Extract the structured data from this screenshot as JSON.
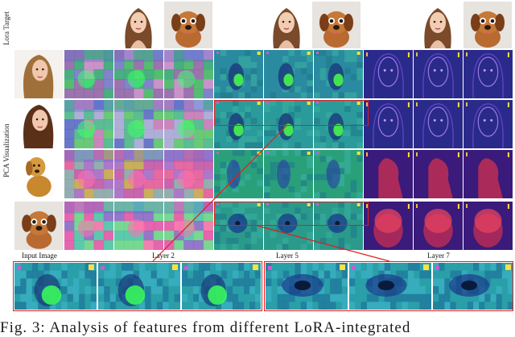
{
  "labels": {
    "lora_target": "Lora Target",
    "pca_visualization": "PCA Visualization",
    "input_image": "Input Image",
    "layer2": "Layer 2",
    "layer5": "Layer 5",
    "layer7": "Layer 7"
  },
  "caption": "Fig. 3: Analysis of features from different LoRA-integrated",
  "colors": {
    "highlight_red": "#e21d1d",
    "layer2_base": "#6a8a6a",
    "layer5_base": "#1f9c6a",
    "layer7_base": "#3a2a9a"
  },
  "input_images": [
    "woman-photo",
    "woman-illustration",
    "dog-photo",
    "dog-cartoon"
  ],
  "lora_targets": [
    "woman-illustration",
    "dog-cartoon"
  ]
}
